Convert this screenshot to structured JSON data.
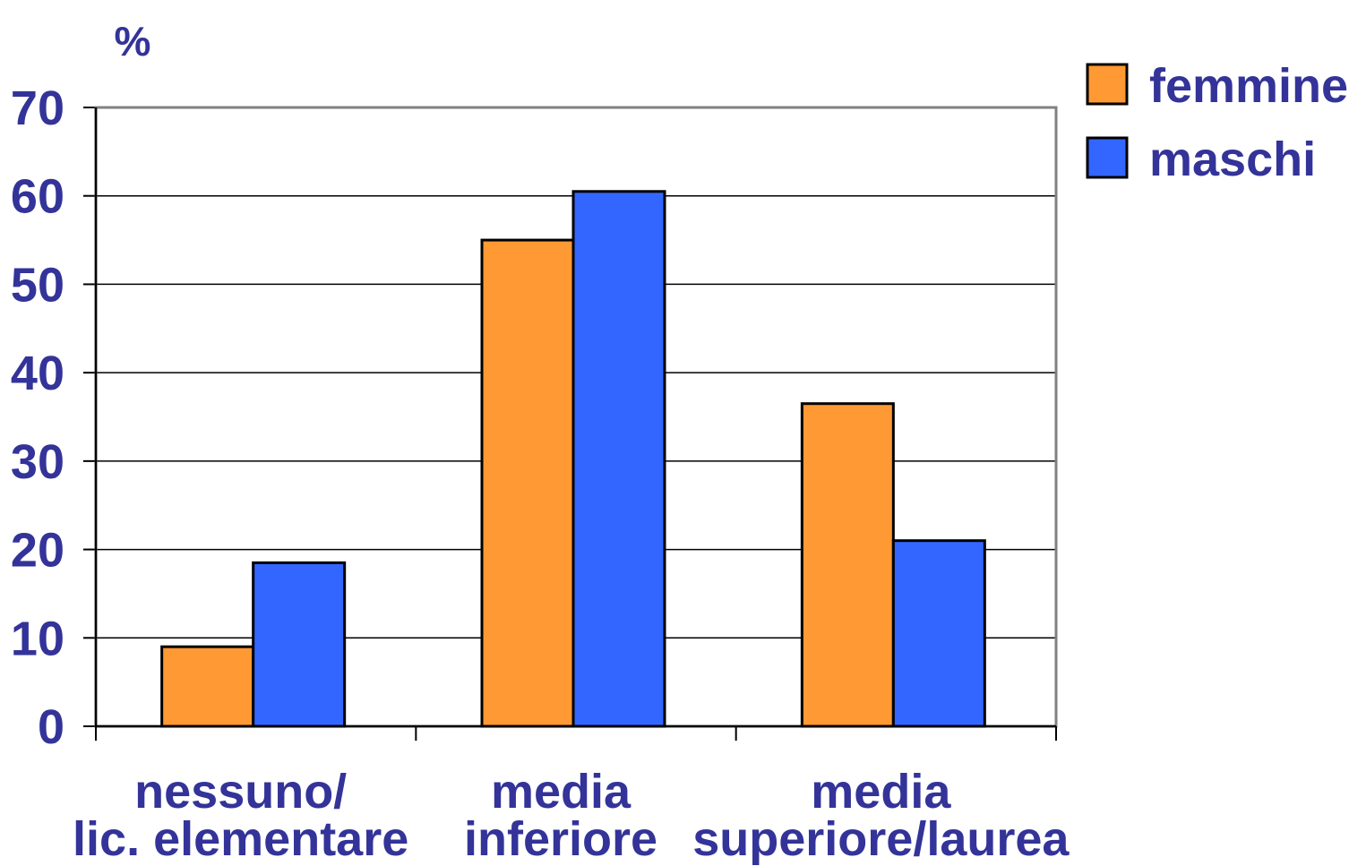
{
  "chart_data": {
    "type": "bar",
    "ylabel": "%",
    "ylim": [
      0,
      70
    ],
    "yticks": [
      0,
      10,
      20,
      30,
      40,
      50,
      60,
      70
    ],
    "grid": true,
    "legend_position": "top-right",
    "categories": [
      [
        "nessuno/",
        "lic. elementare"
      ],
      [
        "media",
        "inferiore"
      ],
      [
        "media",
        "superiore/laurea"
      ]
    ],
    "series": [
      {
        "name": "femmine",
        "color": "#FF9933",
        "values": [
          9,
          55,
          36.5
        ]
      },
      {
        "name": "maschi",
        "color": "#3366FF",
        "values": [
          18.5,
          60.5,
          21
        ]
      }
    ]
  }
}
